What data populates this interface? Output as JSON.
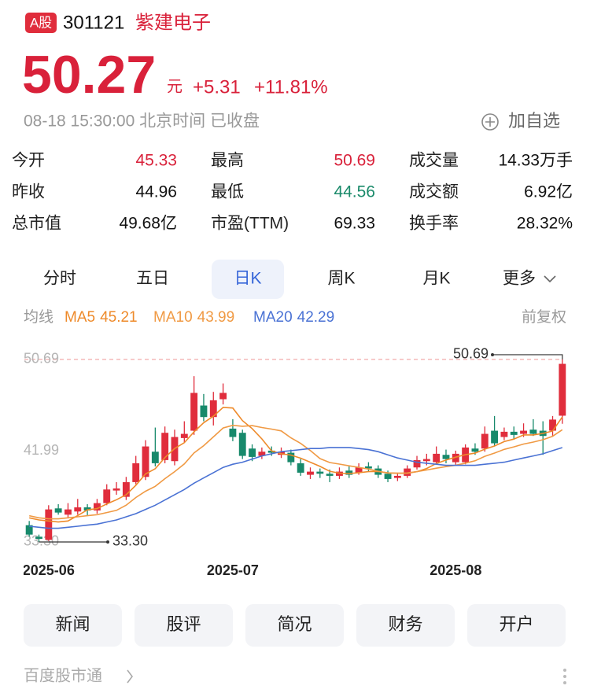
{
  "header": {
    "badge": "A股",
    "code": "301121",
    "name": "紫建电子",
    "price": "50.27",
    "unit": "元",
    "change": "+5.31",
    "change_pct": "+11.81%",
    "time": "08-18 15:30:00 北京时间 已收盘",
    "watch": "加自选"
  },
  "stats": [
    {
      "label": "今开",
      "value": "45.33",
      "color": "#d9213a"
    },
    {
      "label": "最高",
      "value": "50.69",
      "color": "#d9213a"
    },
    {
      "label": "成交量",
      "value": "14.33万手",
      "color": "#111111"
    },
    {
      "label": "昨收",
      "value": "44.96",
      "color": "#111111"
    },
    {
      "label": "最低",
      "value": "44.56",
      "color": "#1a8a6a"
    },
    {
      "label": "成交额",
      "value": "6.92亿",
      "color": "#111111"
    },
    {
      "label": "总市值",
      "value": "49.68亿",
      "color": "#111111"
    },
    {
      "label": "市盈(TTM)",
      "value": "69.33",
      "color": "#111111"
    },
    {
      "label": "换手率",
      "value": "28.32%",
      "color": "#111111"
    }
  ],
  "tabs": {
    "items": [
      "分时",
      "五日",
      "日K",
      "周K",
      "月K",
      "更多"
    ],
    "active": 2
  },
  "legend": {
    "label": "均线",
    "adjust": "前复权"
  },
  "buttons": [
    "新闻",
    "股评",
    "简况",
    "财务",
    "开户"
  ],
  "footer": "百度股市通",
  "chart_data": {
    "type": "candlestick",
    "categories": [
      null,
      null,
      "2025-06",
      null,
      null,
      null,
      null,
      null,
      null,
      null,
      null,
      null,
      null,
      null,
      null,
      null,
      null,
      null,
      null,
      null,
      null,
      "2025-07",
      null,
      null,
      null,
      null,
      null,
      null,
      null,
      null,
      null,
      null,
      null,
      null,
      null,
      null,
      null,
      null,
      null,
      null,
      null,
      null,
      null,
      null,
      "2025-08",
      null,
      null,
      null,
      null,
      null,
      null,
      null,
      null,
      null,
      null,
      null
    ],
    "open": [
      34.9,
      33.8,
      33.5,
      36.5,
      35.9,
      36.2,
      36.6,
      36.3,
      37.0,
      38.2,
      37.6,
      39.0,
      39.5,
      41.9,
      41.1,
      41.0,
      43.2,
      43.9,
      46.3,
      45.2,
      46.9,
      44.1,
      43.7,
      42.2,
      41.5,
      42.0,
      41.6,
      41.8,
      40.8,
      39.7,
      40.0,
      39.8,
      39.6,
      40.1,
      39.9,
      40.5,
      40.3,
      39.8,
      39.4,
      39.6,
      40.4,
      41.0,
      40.9,
      41.6,
      40.9,
      40.9,
      42.2,
      42.2,
      43.9,
      43.3,
      43.8,
      43.6,
      44.0,
      43.9,
      43.9,
      45.33
    ],
    "high": [
      35.3,
      34.0,
      36.8,
      36.9,
      37.0,
      37.4,
      36.9,
      37.4,
      38.8,
      39.0,
      39.5,
      41.5,
      43.0,
      44.2,
      44.3,
      44.0,
      44.8,
      49.1,
      47.4,
      47.6,
      48.4,
      45.0,
      44.0,
      42.6,
      42.3,
      42.4,
      42.3,
      42.1,
      41.2,
      40.4,
      40.3,
      40.2,
      40.4,
      40.5,
      40.8,
      40.9,
      40.6,
      40.1,
      39.9,
      40.6,
      41.5,
      41.7,
      42.4,
      42.1,
      42.0,
      42.6,
      42.7,
      44.3,
      45.3,
      44.2,
      44.3,
      44.6,
      45.0,
      44.8,
      45.3,
      50.69
    ],
    "low": [
      33.8,
      33.3,
      33.4,
      35.9,
      35.6,
      35.9,
      35.8,
      36.0,
      36.8,
      37.8,
      37.3,
      38.8,
      39.2,
      40.5,
      40.8,
      40.6,
      42.8,
      43.5,
      44.8,
      44.4,
      46.4,
      42.9,
      41.2,
      41.0,
      41.2,
      41.5,
      41.3,
      40.6,
      39.6,
      39.3,
      39.4,
      39.0,
      39.3,
      39.4,
      39.7,
      40.0,
      39.4,
      39.0,
      39.1,
      39.4,
      40.2,
      40.6,
      40.7,
      40.8,
      40.6,
      40.7,
      41.6,
      41.9,
      42.4,
      43.0,
      43.1,
      43.3,
      43.4,
      41.6,
      43.4,
      44.56
    ],
    "close": [
      34.0,
      33.6,
      36.4,
      36.1,
      36.4,
      36.6,
      36.3,
      37.0,
      38.3,
      38.4,
      39.0,
      40.8,
      42.4,
      40.8,
      43.7,
      43.3,
      43.6,
      47.5,
      45.2,
      46.8,
      47.5,
      43.3,
      41.5,
      41.4,
      41.9,
      41.8,
      41.9,
      40.9,
      39.9,
      40.0,
      39.8,
      39.6,
      40.0,
      39.7,
      40.4,
      40.3,
      39.7,
      39.3,
      39.6,
      40.3,
      41.1,
      41.2,
      41.7,
      41.2,
      41.7,
      42.3,
      41.9,
      43.6,
      42.7,
      43.8,
      43.5,
      43.9,
      43.6,
      43.4,
      44.96,
      50.27
    ],
    "series": [
      {
        "name": "MA5",
        "color": "#ee8a2a",
        "values": [
          35.6,
          35.4,
          35.3,
          35.2,
          35.3,
          35.82,
          36.36,
          36.48,
          36.92,
          37.32,
          37.8,
          38.7,
          39.78,
          40.28,
          41.34,
          42.2,
          42.76,
          43.78,
          44.66,
          45.28,
          46.12,
          46.06,
          44.86,
          44.1,
          43.12,
          41.98,
          41.7,
          41.58,
          41.28,
          40.9,
          40.5,
          40.04,
          39.86,
          39.82,
          39.9,
          40.0,
          40.02,
          39.88,
          39.86,
          39.84,
          40.0,
          40.3,
          40.78,
          41.1,
          41.38,
          41.62,
          41.76,
          42.14,
          42.44,
          42.86,
          43.1,
          43.5,
          43.5,
          43.64,
          43.87,
          45.21
        ]
      },
      {
        "name": "MA10",
        "color": "#f09a44",
        "values": [
          35.8,
          35.6,
          35.5,
          35.5,
          35.6,
          35.7,
          35.8,
          35.9,
          36.1,
          36.31,
          36.81,
          37.53,
          38.13,
          38.6,
          39.33,
          40.0,
          40.73,
          41.78,
          42.47,
          43.31,
          44.16,
          44.41,
          44.32,
          44.38,
          44.2,
          44.05,
          43.88,
          43.22,
          42.69,
          42.01,
          41.24,
          40.87,
          40.72,
          40.55,
          40.4,
          40.25,
          40.03,
          39.87,
          39.84,
          39.87,
          40.0,
          40.16,
          40.33,
          40.48,
          40.61,
          40.81,
          41.03,
          41.46,
          41.77,
          42.12,
          42.36,
          42.63,
          42.82,
          43.04,
          43.37,
          43.99
        ]
      },
      {
        "name": "MA20",
        "color": "#4a72d4",
        "values": [
          34.8,
          34.7,
          34.6,
          34.6,
          34.7,
          34.8,
          34.9,
          35.0,
          35.2,
          35.4,
          35.7,
          36.0,
          36.4,
          36.8,
          37.3,
          37.8,
          38.3,
          38.9,
          39.4,
          39.9,
          40.4,
          40.7,
          40.9,
          41.2,
          41.5,
          41.7,
          41.9,
          42.0,
          42.1,
          42.2,
          42.2,
          42.3,
          42.3,
          42.3,
          42.2,
          42.1,
          41.9,
          41.6,
          41.3,
          41.1,
          40.9,
          40.8,
          40.7,
          40.6,
          40.6,
          40.6,
          40.6,
          40.7,
          40.8,
          40.9,
          41.1,
          41.3,
          41.5,
          41.7,
          42.0,
          42.29
        ]
      }
    ],
    "ylim": [
      32.1,
      51.96
    ],
    "yticks": [
      {
        "value": 33.3,
        "label": "33.30"
      },
      41.99,
      50.69
    ],
    "grid": false,
    "up_color": "#e02d3c",
    "down_color": "#17896b"
  }
}
